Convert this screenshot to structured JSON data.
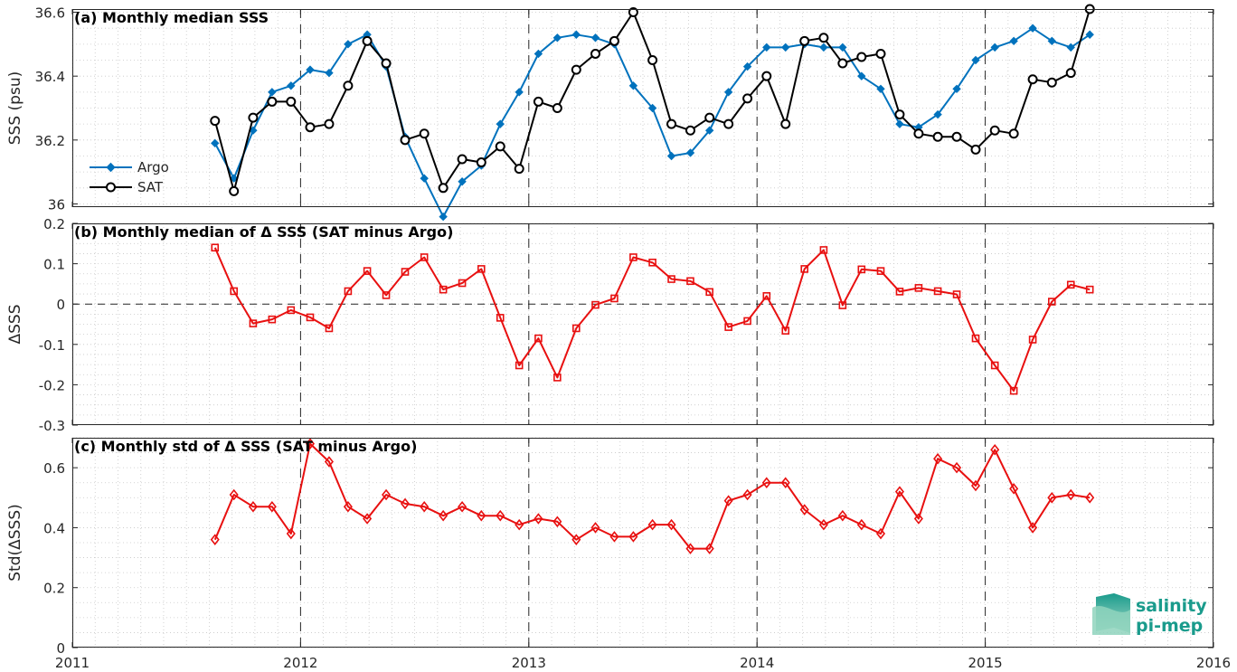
{
  "colors": {
    "argo": "#0072BD",
    "sat": "#000000",
    "delta": "#E81010",
    "grid": "#c8c8c8"
  },
  "logo": {
    "line1": "salinity",
    "line2": "pi-mep"
  },
  "chart_data": [
    {
      "type": "line",
      "title": "(a) Monthly median SSS",
      "xlabel": "",
      "ylabel": "SSS (psu)",
      "xlim": [
        2011,
        2016
      ],
      "ylim": [
        35.99,
        36.61
      ],
      "xticks": [
        "2011",
        "2012",
        "2013",
        "2014",
        "2015",
        "2016"
      ],
      "yticks": [
        "36",
        "36.2",
        "36.4",
        "36.6"
      ],
      "grid": true,
      "legend": "left",
      "x": [
        2011.625,
        2011.708,
        2011.792,
        2011.875,
        2011.958,
        2012.042,
        2012.125,
        2012.208,
        2012.292,
        2012.375,
        2012.458,
        2012.542,
        2012.625,
        2012.708,
        2012.792,
        2012.875,
        2012.958,
        2013.042,
        2013.125,
        2013.208,
        2013.292,
        2013.375,
        2013.458,
        2013.542,
        2013.625,
        2013.708,
        2013.792,
        2013.875,
        2013.958,
        2014.042,
        2014.125,
        2014.208,
        2014.292,
        2014.375,
        2014.458,
        2014.542,
        2014.625,
        2014.708,
        2014.792,
        2014.875,
        2014.958,
        2015.042,
        2015.125,
        2015.208,
        2015.292,
        2015.375,
        2015.458
      ],
      "series": [
        {
          "name": "Argo",
          "marker": "diamond-filled",
          "values": [
            36.19,
            36.08,
            36.23,
            36.35,
            36.37,
            36.42,
            36.41,
            36.5,
            36.53,
            36.43,
            36.21,
            36.08,
            35.96,
            36.07,
            36.12,
            36.25,
            36.35,
            36.47,
            36.52,
            36.53,
            36.52,
            36.5,
            36.37,
            36.3,
            36.15,
            36.16,
            36.23,
            36.35,
            36.43,
            36.49,
            36.49,
            36.5,
            36.49,
            36.49,
            36.4,
            36.36,
            36.25,
            36.24,
            36.28,
            36.36,
            36.45,
            36.49,
            36.51,
            36.55,
            36.51,
            36.49,
            36.53
          ]
        },
        {
          "name": "SAT",
          "marker": "circle-open",
          "values": [
            36.26,
            36.04,
            36.27,
            36.32,
            36.32,
            36.24,
            36.25,
            36.37,
            36.51,
            36.44,
            36.2,
            36.22,
            36.05,
            36.14,
            36.13,
            36.18,
            36.11,
            36.32,
            36.3,
            36.42,
            36.47,
            36.51,
            36.6,
            36.45,
            36.25,
            36.23,
            36.27,
            36.25,
            36.33,
            36.4,
            36.25,
            36.51,
            36.52,
            36.44,
            36.46,
            36.47,
            36.28,
            36.22,
            36.21,
            36.21,
            36.17,
            36.23,
            36.22,
            36.39,
            36.38,
            36.41,
            36.61
          ]
        }
      ]
    },
    {
      "type": "line",
      "title": "(b) Monthly median of Δ SSS (SAT minus Argo)",
      "xlabel": "",
      "ylabel": "ΔSSS",
      "xlim": [
        2011,
        2016
      ],
      "ylim": [
        -0.3,
        0.2
      ],
      "xticks": [
        "2011",
        "2012",
        "2013",
        "2014",
        "2015",
        "2016"
      ],
      "yticks": [
        "-0.3",
        "-0.2",
        "-0.1",
        "0",
        "0.1",
        "0.2"
      ],
      "grid": true,
      "x": [
        2011.625,
        2011.708,
        2011.792,
        2011.875,
        2011.958,
        2012.042,
        2012.125,
        2012.208,
        2012.292,
        2012.375,
        2012.458,
        2012.542,
        2012.625,
        2012.708,
        2012.792,
        2012.875,
        2012.958,
        2013.042,
        2013.125,
        2013.208,
        2013.292,
        2013.375,
        2013.458,
        2013.542,
        2013.625,
        2013.708,
        2013.792,
        2013.875,
        2013.958,
        2014.042,
        2014.125,
        2014.208,
        2014.292,
        2014.375,
        2014.458,
        2014.542,
        2014.625,
        2014.708,
        2014.792,
        2014.875,
        2014.958,
        2015.042,
        2015.125,
        2015.208,
        2015.292,
        2015.375,
        2015.458
      ],
      "series": [
        {
          "marker": "square-open",
          "values": [
            0.14,
            0.032,
            -0.048,
            -0.038,
            -0.015,
            -0.033,
            -0.06,
            0.032,
            0.082,
            0.022,
            0.08,
            0.116,
            0.036,
            0.052,
            0.087,
            -0.034,
            -0.152,
            -0.085,
            -0.182,
            -0.06,
            -0.002,
            0.014,
            0.116,
            0.103,
            0.062,
            0.057,
            0.03,
            -0.057,
            -0.042,
            0.02,
            -0.066,
            0.087,
            0.134,
            -0.003,
            0.086,
            0.082,
            0.031,
            0.04,
            0.032,
            0.024,
            -0.085,
            -0.152,
            -0.215,
            -0.088,
            0.006,
            0.048,
            0.036
          ]
        }
      ]
    },
    {
      "type": "line",
      "title": "(c) Monthly std of Δ SSS (SAT minus Argo)",
      "xlabel": "",
      "ylabel": "Std(ΔSSS)",
      "xlim": [
        2011,
        2016
      ],
      "ylim": [
        0,
        0.7
      ],
      "xticks": [
        "2011",
        "2012",
        "2013",
        "2014",
        "2015",
        "2016"
      ],
      "yticks": [
        "0",
        "0.2",
        "0.4",
        "0.6"
      ],
      "grid": true,
      "x": [
        2011.625,
        2011.708,
        2011.792,
        2011.875,
        2011.958,
        2012.042,
        2012.125,
        2012.208,
        2012.292,
        2012.375,
        2012.458,
        2012.542,
        2012.625,
        2012.708,
        2012.792,
        2012.875,
        2012.958,
        2013.042,
        2013.125,
        2013.208,
        2013.292,
        2013.375,
        2013.458,
        2013.542,
        2013.625,
        2013.708,
        2013.792,
        2013.875,
        2013.958,
        2014.042,
        2014.125,
        2014.208,
        2014.292,
        2014.375,
        2014.458,
        2014.542,
        2014.625,
        2014.708,
        2014.792,
        2014.875,
        2014.958,
        2015.042,
        2015.125,
        2015.208,
        2015.292,
        2015.375,
        2015.458
      ],
      "series": [
        {
          "marker": "diamond-open",
          "values": [
            0.36,
            0.51,
            0.47,
            0.47,
            0.38,
            0.68,
            0.62,
            0.47,
            0.43,
            0.51,
            0.48,
            0.47,
            0.44,
            0.47,
            0.44,
            0.44,
            0.41,
            0.43,
            0.42,
            0.36,
            0.4,
            0.37,
            0.37,
            0.41,
            0.41,
            0.33,
            0.33,
            0.49,
            0.51,
            0.55,
            0.55,
            0.46,
            0.41,
            0.44,
            0.41,
            0.38,
            0.52,
            0.43,
            0.63,
            0.6,
            0.54,
            0.66,
            0.53,
            0.4,
            0.5,
            0.51,
            0.5
          ]
        }
      ]
    }
  ]
}
